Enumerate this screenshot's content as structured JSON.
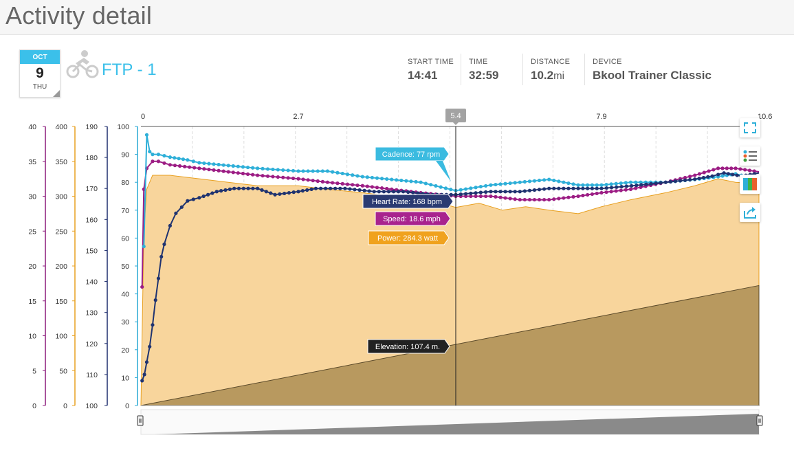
{
  "header": {
    "title": "Activity detail"
  },
  "activity": {
    "date": {
      "month": "OCT",
      "day": "9",
      "weekday": "THU"
    },
    "sport_icon": "cycling-icon",
    "name": "FTP - 1"
  },
  "stats": [
    {
      "label": "START TIME",
      "value": "14:41",
      "unit": ""
    },
    {
      "label": "TIME",
      "value": "32:59",
      "unit": ""
    },
    {
      "label": "DISTANCE",
      "value": "10.2",
      "unit": "mi"
    },
    {
      "label": "DEVICE",
      "value": "Bkool Trainer Classic",
      "unit": ""
    }
  ],
  "toolbar": [
    {
      "icon": "fullscreen-icon"
    },
    {
      "icon": "legend-list-icon"
    },
    {
      "icon": "color-zones-icon"
    },
    {
      "icon": "share-icon"
    }
  ],
  "chart_data": {
    "type": "line",
    "x_axis": {
      "min": 0,
      "max": 10.6,
      "ticks": [
        "0",
        "2.7",
        "5.4",
        "7.9",
        "10.6"
      ],
      "position": "top",
      "highlight": "5.4"
    },
    "y_axes": [
      {
        "id": "speed",
        "color": "#8b1a7c",
        "min": 0,
        "max": 40,
        "ticks": [
          "0",
          "5",
          "10",
          "15",
          "20",
          "25",
          "30",
          "35",
          "40"
        ]
      },
      {
        "id": "power",
        "color": "#e8a020",
        "min": 0,
        "max": 400,
        "ticks": [
          "0",
          "50",
          "100",
          "150",
          "200",
          "250",
          "300",
          "350",
          "400"
        ]
      },
      {
        "id": "heart_rate",
        "color": "#1f2e6e",
        "min": 100,
        "max": 190,
        "ticks": [
          "100",
          "110",
          "120",
          "130",
          "140",
          "150",
          "160",
          "170",
          "180",
          "190"
        ]
      },
      {
        "id": "cadence",
        "color": "#29a8d4",
        "min": 0,
        "max": 100,
        "ticks": [
          "0",
          "10",
          "20",
          "30",
          "40",
          "50",
          "60",
          "70",
          "80",
          "90",
          "100"
        ]
      }
    ],
    "grid": true,
    "series": [
      {
        "name": "Cadence",
        "axis": "cadence",
        "color": "#2eafd8",
        "x": [
          0.05,
          0.1,
          0.15,
          0.2,
          0.3,
          0.5,
          0.8,
          1.0,
          1.5,
          2.0,
          2.7,
          3.2,
          3.8,
          4.3,
          4.8,
          5.4,
          6.0,
          6.5,
          7.0,
          7.5,
          7.9,
          8.4,
          9.0,
          9.5,
          9.9,
          10.2,
          10.4,
          10.6
        ],
        "values": [
          57,
          97,
          91,
          90,
          90,
          89,
          88,
          87,
          86,
          85,
          84,
          84,
          82,
          81,
          80,
          77,
          79,
          80,
          81,
          79,
          79,
          80,
          80,
          81,
          82,
          83,
          82,
          81
        ]
      },
      {
        "name": "Heart Rate",
        "axis": "heart_rate",
        "color": "#1f3370",
        "x": [
          0.02,
          0.06,
          0.1,
          0.15,
          0.2,
          0.25,
          0.3,
          0.35,
          0.4,
          0.5,
          0.6,
          0.7,
          0.8,
          1.0,
          1.3,
          1.6,
          2.0,
          2.3,
          2.7,
          3.0,
          3.5,
          4.0,
          4.5,
          5.0,
          5.4,
          6.0,
          6.5,
          7.0,
          7.5,
          7.9,
          8.5,
          9.0,
          9.5,
          9.8,
          10.0,
          10.3,
          10.6
        ],
        "values": [
          108,
          110,
          114,
          119,
          126,
          134,
          141,
          148,
          152,
          158,
          162,
          164,
          166,
          167,
          169,
          170,
          170,
          168,
          169,
          170,
          170,
          169,
          169,
          168,
          168,
          169,
          169,
          170,
          170,
          170,
          171,
          172,
          173,
          174,
          175,
          174,
          175
        ]
      },
      {
        "name": "Speed",
        "axis": "speed",
        "color": "#9c1d84",
        "x": [
          0.02,
          0.05,
          0.1,
          0.2,
          0.3,
          0.5,
          1.0,
          1.5,
          2.0,
          2.7,
          3.2,
          3.8,
          4.3,
          4.8,
          5.4,
          6.0,
          6.5,
          7.0,
          7.5,
          7.9,
          8.4,
          9.0,
          9.5,
          9.9,
          10.2,
          10.6
        ],
        "values": [
          17,
          31,
          34,
          35,
          35,
          34.5,
          34,
          33.5,
          33,
          32.5,
          32,
          31.5,
          31,
          30.5,
          30,
          30,
          29.5,
          29.5,
          30,
          30.5,
          31,
          32,
          33,
          34,
          34,
          33.5
        ]
      },
      {
        "name": "Power",
        "axis": "power",
        "color": "#e8a020",
        "area": true,
        "x": [
          0,
          0.05,
          0.1,
          0.2,
          0.5,
          1.0,
          1.5,
          2.0,
          2.7,
          3.2,
          3.8,
          4.3,
          4.8,
          5.4,
          5.8,
          6.2,
          6.6,
          7.0,
          7.5,
          7.9,
          8.4,
          9.0,
          9.5,
          9.9,
          10.2,
          10.6
        ],
        "values": [
          0,
          250,
          310,
          330,
          330,
          325,
          320,
          315,
          315,
          310,
          305,
          300,
          298,
          284,
          290,
          280,
          285,
          280,
          275,
          285,
          295,
          305,
          315,
          325,
          320,
          318
        ]
      },
      {
        "name": "Elevation",
        "axis": "cadence",
        "color": "#b8995f",
        "area": true,
        "x": [
          0,
          10.6
        ],
        "values": [
          0,
          43
        ]
      }
    ],
    "tooltips": [
      {
        "series": "Cadence",
        "label": "Cadence: 77 rpm",
        "color": "#3bbbe0"
      },
      {
        "series": "Heart Rate",
        "label": "Heart Rate: 168 bpm",
        "color": "#2a3a72"
      },
      {
        "series": "Speed",
        "label": "Speed: 18.6 mph",
        "color": "#a8238e"
      },
      {
        "series": "Power",
        "label": "Power: 284.3 watt",
        "color": "#f0a21e"
      },
      {
        "series": "Elevation",
        "label": "Elevation: 107.4 m.",
        "color": "#222222"
      }
    ],
    "cursor_x": 5.4
  }
}
